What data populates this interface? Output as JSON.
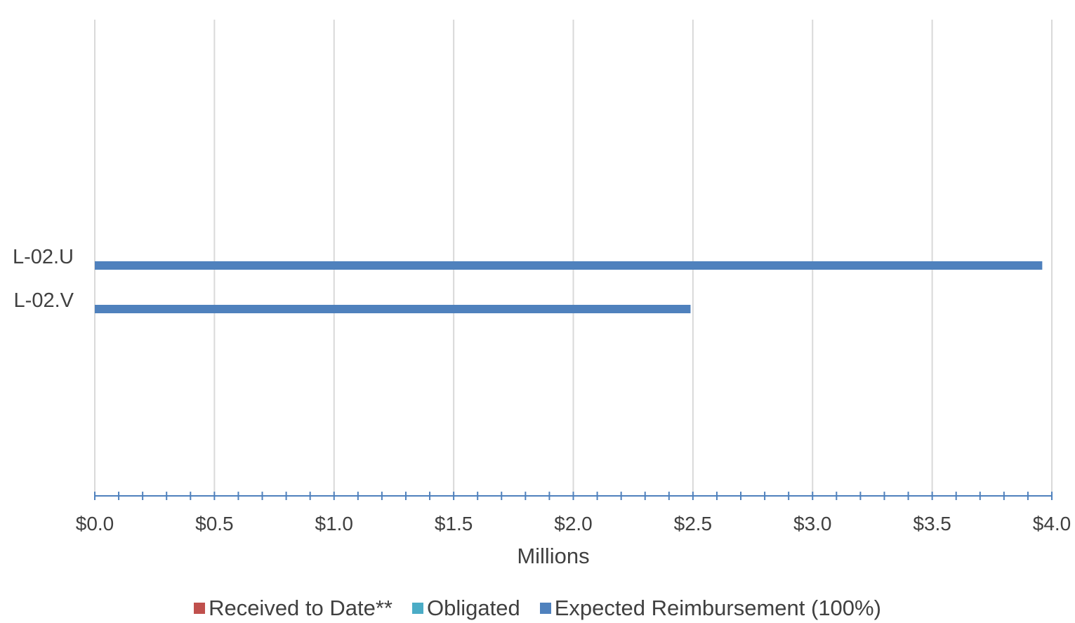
{
  "chart_data": {
    "type": "bar",
    "orientation": "horizontal",
    "categories": [
      "L-02.U",
      "L-02.V"
    ],
    "series": [
      {
        "name": "Received to Date**",
        "color": "#c0504d",
        "values": [
          0,
          0
        ]
      },
      {
        "name": "Obligated",
        "color": "#4bacc6",
        "values": [
          0,
          0
        ]
      },
      {
        "name": "Expected Reimbursement (100%)",
        "color": "#4f81bd",
        "values": [
          3.96,
          2.49
        ]
      }
    ],
    "xlabel": "Millions",
    "xlim": [
      0,
      4.0
    ],
    "x_ticks": [
      "$0.0",
      "$0.5",
      "$1.0",
      "$1.5",
      "$2.0",
      "$2.5",
      "$3.0",
      "$3.5",
      "$4.0"
    ],
    "x_tick_step": 0.5,
    "x_minor_step": 0.1,
    "grid": "vertical",
    "legend_position": "bottom"
  },
  "legend": {
    "items": [
      {
        "label": "Received to Date**",
        "color": "#c0504d"
      },
      {
        "label": "Obligated",
        "color": "#4bacc6"
      },
      {
        "label": "Expected Reimbursement (100%)",
        "color": "#4f81bd"
      }
    ]
  }
}
